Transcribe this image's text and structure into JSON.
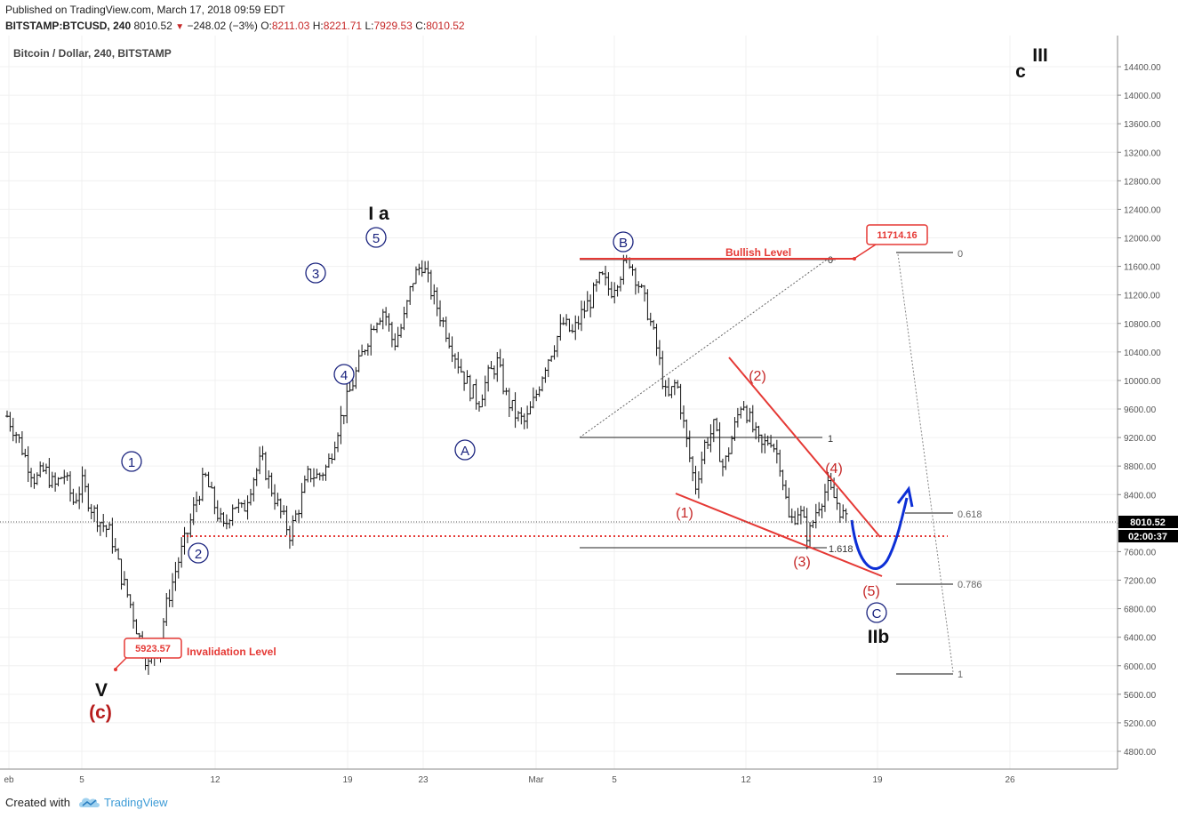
{
  "header": {
    "published": "Published on TradingView.com, March 17, 2018 09:59 EDT",
    "symbol": "BITSTAMP:BTCUSD, 240",
    "last": "8010.52",
    "change": "−248.02 (−3%)",
    "open_label": "O:",
    "open": "8211.03",
    "high_label": "H:",
    "high": "8221.71",
    "low_label": "L:",
    "low": "7929.53",
    "close_label": "C:",
    "close": "8010.52"
  },
  "footer": {
    "created": "Created with",
    "brand": "TradingView"
  },
  "colors": {
    "wave_blue": "#1a237e",
    "wave_red": "#d32f2f",
    "dark_red": "#8b0000",
    "candle": "#111111",
    "grid": "#eeeeee",
    "price_tag": "#000000",
    "arrow": "#0d2fd6"
  },
  "chart_data": {
    "type": "candlestick",
    "title": "Bitcoin / Dollar, 240, BITSTAMP",
    "ylim": [
      4400,
      14800
    ],
    "y_ticks": [
      "14400.00",
      "14000.00",
      "13600.00",
      "13200.00",
      "12800.00",
      "12400.00",
      "12000.00",
      "11600.00",
      "11200.00",
      "10800.00",
      "10400.00",
      "10000.00",
      "9600.00",
      "9200.00",
      "8800.00",
      "8400.00",
      "8000.00",
      "7600.00",
      "7200.00",
      "6800.00",
      "6400.00",
      "6000.00",
      "5600.00",
      "5200.00",
      "4800.00"
    ],
    "x_ticks": [
      "eb",
      "5",
      "12",
      "19",
      "23",
      "Mar",
      "5",
      "12",
      "19",
      "26"
    ],
    "price_tag": "8010.52",
    "countdown_tag": "02:00:37",
    "price_path": [
      [
        0,
        9500
      ],
      [
        1,
        9250
      ],
      [
        2,
        8900
      ],
      [
        3,
        8600
      ],
      [
        4,
        8750
      ],
      [
        5,
        8500
      ],
      [
        6,
        8700
      ],
      [
        7,
        8300
      ],
      [
        8,
        8550
      ],
      [
        9,
        8200
      ],
      [
        10,
        8000
      ],
      [
        11,
        7850
      ],
      [
        12,
        7300
      ],
      [
        13,
        6900
      ],
      [
        14,
        6400
      ],
      [
        15,
        6000
      ],
      [
        16,
        6250
      ],
      [
        17,
        6900
      ],
      [
        18,
        7400
      ],
      [
        19,
        7800
      ],
      [
        20,
        8300
      ],
      [
        21,
        8650
      ],
      [
        22,
        8250
      ],
      [
        23,
        7900
      ],
      [
        24,
        8300
      ],
      [
        25,
        8150
      ],
      [
        26,
        8600
      ],
      [
        27,
        8900
      ],
      [
        28,
        8500
      ],
      [
        29,
        8150
      ],
      [
        30,
        7850
      ],
      [
        31,
        8250
      ],
      [
        32,
        8700
      ],
      [
        33,
        8650
      ],
      [
        34,
        8800
      ],
      [
        35,
        9300
      ],
      [
        36,
        9700
      ],
      [
        37,
        10100
      ],
      [
        38,
        10500
      ],
      [
        39,
        10850
      ],
      [
        40,
        11000
      ],
      [
        41,
        10500
      ],
      [
        42,
        10800
      ],
      [
        43,
        11400
      ],
      [
        44,
        11650
      ],
      [
        45,
        11250
      ],
      [
        46,
        10900
      ],
      [
        47,
        10550
      ],
      [
        48,
        10200
      ],
      [
        49,
        9900
      ],
      [
        50,
        9700
      ],
      [
        51,
        10050
      ],
      [
        52,
        10250
      ],
      [
        53,
        9750
      ],
      [
        54,
        9500
      ],
      [
        55,
        9400
      ],
      [
        56,
        9750
      ],
      [
        57,
        10200
      ],
      [
        58,
        10500
      ],
      [
        59,
        10800
      ],
      [
        60,
        10650
      ],
      [
        61,
        10950
      ],
      [
        62,
        11150
      ],
      [
        63,
        11450
      ],
      [
        64,
        11250
      ],
      [
        65,
        11500
      ],
      [
        66,
        11700
      ],
      [
        67,
        11350
      ],
      [
        68,
        10950
      ],
      [
        69,
        10400
      ],
      [
        70,
        9700
      ],
      [
        71,
        10000
      ],
      [
        72,
        9200
      ],
      [
        73,
        8500
      ],
      [
        74,
        9100
      ],
      [
        75,
        9350
      ],
      [
        76,
        8750
      ],
      [
        77,
        9250
      ],
      [
        78,
        9750
      ],
      [
        79,
        9350
      ],
      [
        80,
        9050
      ],
      [
        81,
        9200
      ],
      [
        82,
        8850
      ],
      [
        83,
        8000
      ],
      [
        84,
        8200
      ],
      [
        85,
        7800
      ],
      [
        86,
        8250
      ],
      [
        87,
        8500
      ],
      [
        88,
        8300
      ],
      [
        89,
        8010
      ]
    ]
  },
  "waves": {
    "blue_circled": [
      {
        "label": "1"
      },
      {
        "label": "2"
      },
      {
        "label": "3"
      },
      {
        "label": "4"
      },
      {
        "label": "5"
      },
      {
        "label": "A"
      },
      {
        "label": "B"
      },
      {
        "label": "C"
      }
    ],
    "red_paren": [
      "(1)",
      "(2)",
      "(3)",
      "(4)",
      "(5)"
    ],
    "big_labels": {
      "ia": "I a",
      "v": "V",
      "c_red": "(c)",
      "iib": "IIb",
      "top_c": "c",
      "top_iii": "III"
    }
  },
  "levels": {
    "bullish_label": "Bullish Level",
    "bullish_value": "11714.16",
    "invalidation_label": "Invalidation Level",
    "invalidation_value": "5923.57"
  },
  "fib_left": [
    "0",
    "1",
    "1.618"
  ],
  "fib_right": [
    "0",
    "0.618",
    "0.786",
    "1"
  ]
}
